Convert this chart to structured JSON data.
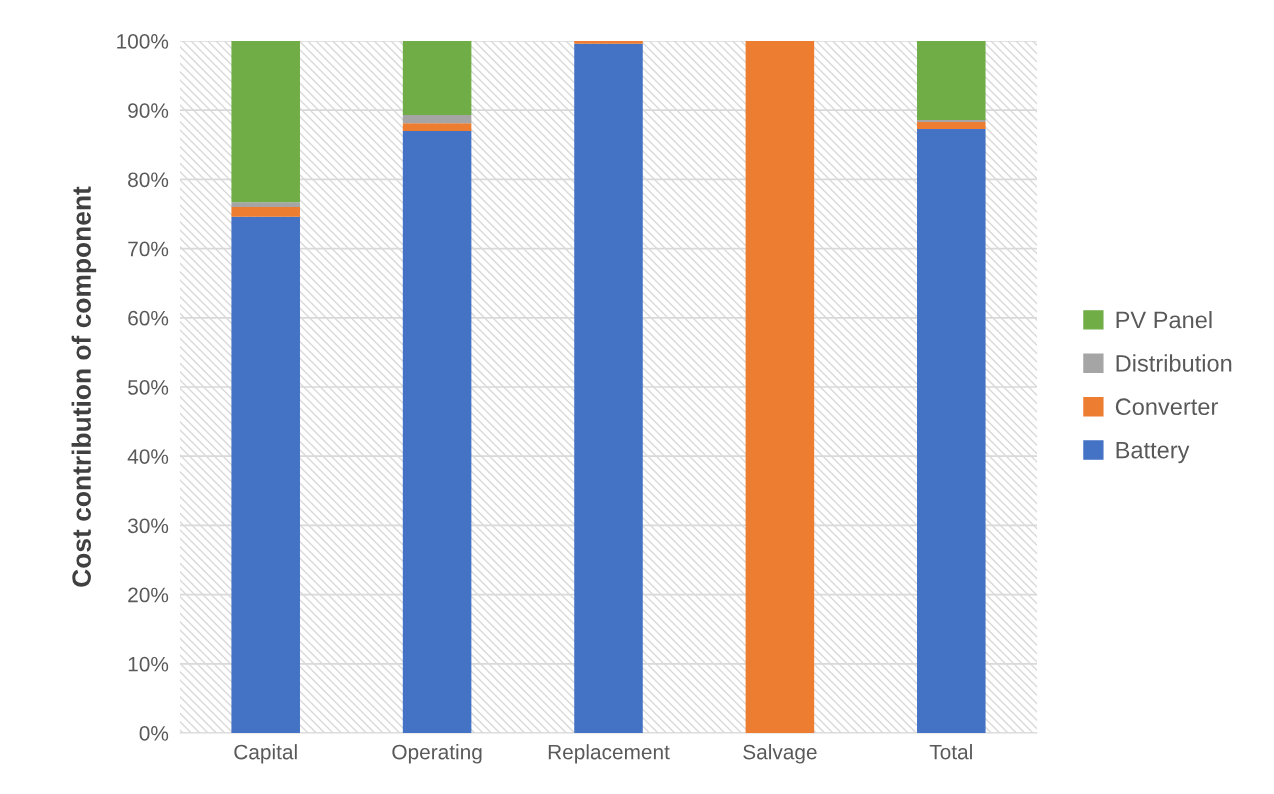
{
  "chart_data": {
    "type": "bar",
    "stacked": true,
    "ylabel": "Cost contribution of component",
    "categories": [
      "Capital",
      "Operating",
      "Replacement",
      "Salvage",
      "Total"
    ],
    "series": [
      {
        "name": "Battery",
        "color": "#4472c4",
        "values": [
          74.6,
          87.0,
          99.6,
          0,
          87.3
        ]
      },
      {
        "name": "Converter",
        "color": "#ed7d31",
        "values": [
          1.4,
          1.1,
          0.4,
          100,
          1.0
        ]
      },
      {
        "name": "Distribution",
        "color": "#a5a5a5",
        "values": [
          0.7,
          1.2,
          0,
          0,
          0.3
        ]
      },
      {
        "name": "PV Panel",
        "color": "#70ad47",
        "values": [
          23.3,
          10.7,
          0,
          0,
          11.4
        ]
      }
    ],
    "ylim": [
      0,
      100
    ],
    "yticks": [
      {
        "value": 0,
        "label": "0%"
      },
      {
        "value": 10,
        "label": "10%"
      },
      {
        "value": 20,
        "label": "20%"
      },
      {
        "value": 30,
        "label": "30%"
      },
      {
        "value": 40,
        "label": "40%"
      },
      {
        "value": 50,
        "label": "50%"
      },
      {
        "value": 60,
        "label": "60%"
      },
      {
        "value": 70,
        "label": "70%"
      },
      {
        "value": 80,
        "label": "80%"
      },
      {
        "value": 90,
        "label": "90%"
      },
      {
        "value": 100,
        "label": "100%"
      }
    ],
    "grid": "y",
    "legend": "right"
  }
}
